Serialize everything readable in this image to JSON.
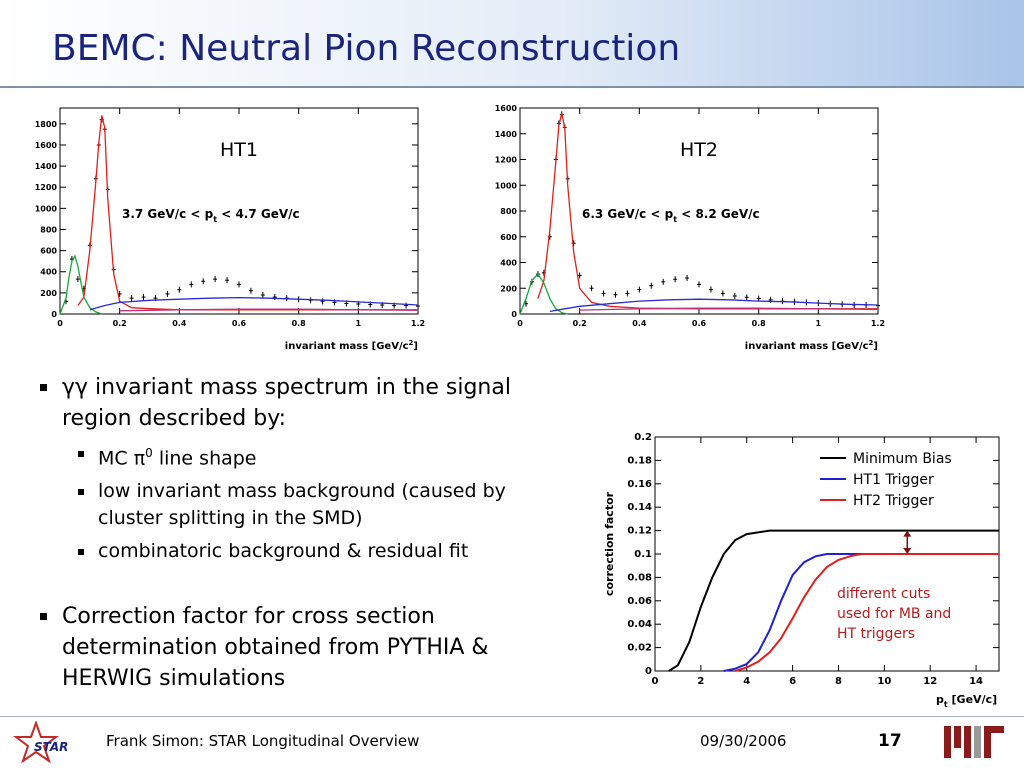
{
  "slide": {
    "title": "BEMC: Neutral Pion Reconstruction",
    "bullets": {
      "b1_prefix": "γγ",
      "b1_text": " invariant mass spectrum in the signal region described by:",
      "sub1_prefix": "MC ",
      "sub1_pi": "π",
      "sub1_sup": "0",
      "sub1_suffix": " line shape",
      "sub2": "low invariant mass background (caused by cluster splitting in the SMD)",
      "sub3": "combinatoric background & residual fit",
      "b2_text": "Correction factor for cross section determination obtained from PYTHIA & HERWIG simulations"
    },
    "footer": {
      "author": "Frank Simon: STAR Longitudinal Overview",
      "date": "09/30/2006",
      "page": "17",
      "star_logo_text": "STAR"
    },
    "colors": {
      "title": "#1a237e",
      "accent": "#b71c1c"
    }
  },
  "chart_data": [
    {
      "type": "line",
      "label": "HT1",
      "annotation": "3.7 GeV/c < p",
      "annotation_sub": "t",
      "annotation_end": " < 4.7 GeV/c",
      "xlabel": "invariant mass [GeV/c",
      "xlabel_sup": "2",
      "xlabel_end": "]",
      "xlim": [
        0,
        1.2
      ],
      "ylim": [
        0,
        1950
      ],
      "xticks": [
        0,
        0.2,
        0.4,
        0.6,
        0.8,
        1,
        1.2
      ],
      "xtick_labels": [
        "0",
        "0.2",
        "0.4",
        "0.6",
        "0.8",
        "1",
        "1.2"
      ],
      "yticks": [
        0,
        200,
        400,
        600,
        800,
        1000,
        1200,
        1400,
        1600,
        1800
      ],
      "ytick_labels": [
        "0",
        "200",
        "400",
        "600",
        "800",
        "1000",
        "1200",
        "1400",
        "1600",
        "1800"
      ],
      "series": [
        {
          "color": "#000000",
          "style": "points",
          "x": [
            0.02,
            0.04,
            0.06,
            0.08,
            0.1,
            0.12,
            0.13,
            0.14,
            0.15,
            0.16,
            0.18,
            0.2,
            0.24,
            0.28,
            0.32,
            0.36,
            0.4,
            0.44,
            0.48,
            0.52,
            0.56,
            0.6,
            0.64,
            0.68,
            0.72,
            0.76,
            0.8,
            0.84,
            0.88,
            0.92,
            0.96,
            1.0,
            1.04,
            1.08,
            1.12,
            1.16,
            1.2
          ],
          "y": [
            120,
            520,
            330,
            240,
            650,
            1280,
            1600,
            1840,
            1750,
            1180,
            420,
            190,
            150,
            160,
            150,
            190,
            230,
            280,
            310,
            330,
            320,
            280,
            220,
            180,
            160,
            150,
            140,
            130,
            120,
            110,
            100,
            95,
            90,
            85,
            80,
            80,
            75
          ]
        },
        {
          "color": "#e0201b",
          "style": "line",
          "x": [
            0.06,
            0.08,
            0.1,
            0.12,
            0.13,
            0.14,
            0.15,
            0.16,
            0.18,
            0.2,
            0.24,
            0.3,
            0.4,
            0.6,
            0.8,
            1.0,
            1.2
          ],
          "y": [
            80,
            160,
            600,
            1250,
            1620,
            1880,
            1760,
            1100,
            380,
            120,
            60,
            50,
            40,
            40,
            40,
            40,
            40
          ]
        },
        {
          "color": "#19a83a",
          "style": "line",
          "x": [
            0.0,
            0.02,
            0.03,
            0.04,
            0.05,
            0.06,
            0.07,
            0.08,
            0.1,
            0.12,
            0.14
          ],
          "y": [
            0,
            150,
            350,
            500,
            550,
            450,
            300,
            160,
            60,
            20,
            0
          ]
        },
        {
          "color": "#2a2ad6",
          "style": "line",
          "x": [
            0.1,
            0.15,
            0.2,
            0.3,
            0.4,
            0.5,
            0.6,
            0.7,
            0.8,
            0.9,
            1.0,
            1.1,
            1.2
          ],
          "y": [
            40,
            80,
            110,
            130,
            140,
            150,
            155,
            150,
            140,
            130,
            115,
            100,
            85
          ]
        },
        {
          "color": "#c0307a",
          "style": "line",
          "x": [
            0.2,
            0.4,
            0.6,
            0.8,
            1.0,
            1.2
          ],
          "y": [
            30,
            40,
            45,
            45,
            40,
            35
          ]
        }
      ]
    },
    {
      "type": "line",
      "label": "HT2",
      "annotation": "6.3 GeV/c < p",
      "annotation_sub": "t",
      "annotation_end": " < 8.2 GeV/c",
      "xlabel": "invariant mass [GeV/c",
      "xlabel_sup": "2",
      "xlabel_end": "]",
      "xlim": [
        0,
        1.2
      ],
      "ylim": [
        0,
        1600
      ],
      "xticks": [
        0,
        0.2,
        0.4,
        0.6,
        0.8,
        1,
        1.2
      ],
      "xtick_labels": [
        "0",
        "0.2",
        "0.4",
        "0.6",
        "0.8",
        "1",
        "1.2"
      ],
      "yticks": [
        0,
        200,
        400,
        600,
        800,
        1000,
        1200,
        1400,
        1600
      ],
      "ytick_labels": [
        "0",
        "200",
        "400",
        "600",
        "800",
        "1000",
        "1200",
        "1400",
        "1600"
      ],
      "series": [
        {
          "color": "#000000",
          "style": "points",
          "x": [
            0.02,
            0.04,
            0.06,
            0.08,
            0.1,
            0.12,
            0.13,
            0.14,
            0.15,
            0.16,
            0.18,
            0.2,
            0.24,
            0.28,
            0.32,
            0.36,
            0.4,
            0.44,
            0.48,
            0.52,
            0.56,
            0.6,
            0.64,
            0.68,
            0.72,
            0.76,
            0.8,
            0.84,
            0.88,
            0.92,
            0.96,
            1.0,
            1.04,
            1.08,
            1.12,
            1.16,
            1.2
          ],
          "y": [
            80,
            250,
            310,
            320,
            600,
            1200,
            1480,
            1550,
            1450,
            1050,
            550,
            300,
            200,
            160,
            150,
            160,
            190,
            220,
            250,
            270,
            280,
            230,
            190,
            160,
            140,
            130,
            120,
            110,
            100,
            95,
            90,
            85,
            80,
            75,
            70,
            70,
            65
          ]
        },
        {
          "color": "#e0201b",
          "style": "line",
          "x": [
            0.06,
            0.08,
            0.1,
            0.12,
            0.13,
            0.14,
            0.15,
            0.16,
            0.18,
            0.2,
            0.24,
            0.3,
            0.4,
            0.6,
            0.8,
            1.0,
            1.2
          ],
          "y": [
            120,
            260,
            650,
            1180,
            1460,
            1560,
            1440,
            1000,
            480,
            200,
            90,
            60,
            45,
            40,
            40,
            40,
            40
          ]
        },
        {
          "color": "#19a83a",
          "style": "line",
          "x": [
            0.0,
            0.02,
            0.04,
            0.06,
            0.08,
            0.1,
            0.12,
            0.14,
            0.16
          ],
          "y": [
            0,
            120,
            260,
            310,
            240,
            120,
            40,
            10,
            0
          ]
        },
        {
          "color": "#2a2ad6",
          "style": "line",
          "x": [
            0.1,
            0.15,
            0.2,
            0.3,
            0.4,
            0.5,
            0.6,
            0.7,
            0.8,
            0.9,
            1.0,
            1.1,
            1.2
          ],
          "y": [
            20,
            40,
            60,
            80,
            100,
            110,
            115,
            110,
            100,
            95,
            85,
            75,
            70
          ]
        },
        {
          "color": "#c0307a",
          "style": "line",
          "x": [
            0.2,
            0.4,
            0.6,
            0.8,
            1.0,
            1.2
          ],
          "y": [
            30,
            40,
            45,
            45,
            40,
            35
          ]
        }
      ]
    },
    {
      "type": "line",
      "xlabel": "p",
      "xlabel_sub": "t",
      "xlabel_end": " [GeV/c]",
      "ylabel": "correction factor",
      "xlim": [
        0,
        15
      ],
      "ylim": [
        0,
        0.2
      ],
      "xticks": [
        0,
        2,
        4,
        6,
        8,
        10,
        12,
        14
      ],
      "xtick_labels": [
        "0",
        "2",
        "4",
        "6",
        "8",
        "10",
        "12",
        "14"
      ],
      "yticks": [
        0,
        0.02,
        0.04,
        0.06,
        0.08,
        0.1,
        0.12,
        0.14,
        0.16,
        0.18,
        0.2
      ],
      "ytick_labels": [
        "0",
        "0.02",
        "0.04",
        "0.06",
        "0.08",
        "0.1",
        "0.12",
        "0.14",
        "0.16",
        "0.18",
        "0.2"
      ],
      "legend_position": "top-right",
      "series": [
        {
          "name": "Minimum Bias",
          "color": "#000000",
          "x": [
            0.6,
            1.0,
            1.5,
            2.0,
            2.5,
            3.0,
            3.5,
            4.0,
            5.0,
            6.0,
            8.0,
            10.0,
            12.0,
            15.0
          ],
          "y": [
            0.0,
            0.005,
            0.025,
            0.055,
            0.08,
            0.1,
            0.112,
            0.117,
            0.12,
            0.12,
            0.12,
            0.12,
            0.12,
            0.12
          ]
        },
        {
          "name": "HT1 Trigger",
          "color": "#2020d0",
          "x": [
            3.0,
            3.5,
            4.0,
            4.5,
            5.0,
            5.5,
            6.0,
            6.5,
            7.0,
            7.5,
            8.0,
            9.0,
            10.0,
            12.0,
            15.0
          ],
          "y": [
            0.0,
            0.002,
            0.006,
            0.016,
            0.035,
            0.06,
            0.082,
            0.093,
            0.098,
            0.1,
            0.1,
            0.1,
            0.1,
            0.1,
            0.1
          ]
        },
        {
          "name": "HT2 Trigger",
          "color": "#e02020",
          "x": [
            3.5,
            4.0,
            4.5,
            5.0,
            5.5,
            6.0,
            6.5,
            7.0,
            7.5,
            8.0,
            8.5,
            9.0,
            10.0,
            11.0,
            12.0,
            15.0
          ],
          "y": [
            0.0,
            0.003,
            0.008,
            0.016,
            0.028,
            0.045,
            0.063,
            0.078,
            0.089,
            0.095,
            0.098,
            0.1,
            0.1,
            0.1,
            0.1,
            0.1
          ]
        }
      ],
      "annotation_lines": [
        "different cuts",
        "used for MB and",
        "HT triggers"
      ],
      "arrow": {
        "x": 11,
        "y1": 0.1,
        "y2": 0.12
      }
    }
  ]
}
